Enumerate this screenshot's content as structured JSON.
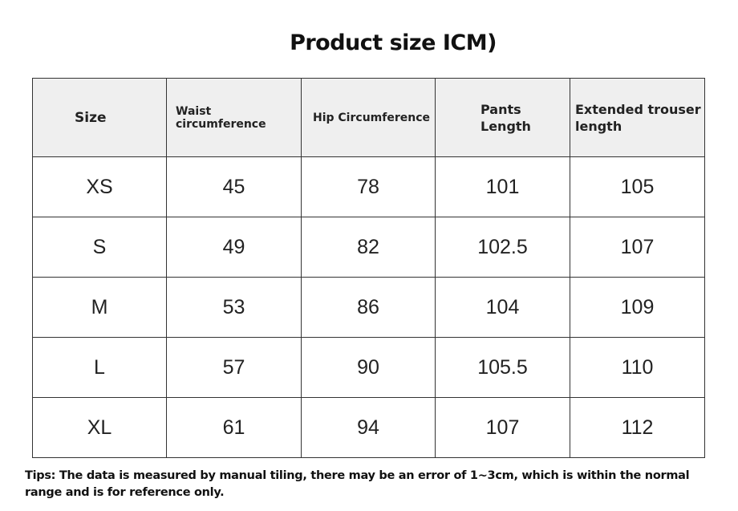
{
  "title": "Product size ICM)",
  "table": {
    "headers": [
      "Size",
      "Waist circumference",
      "Hip Circumference",
      "Pants Length",
      "Extended trouser length"
    ],
    "rows": [
      [
        "XS",
        "45",
        "78",
        "101",
        "105"
      ],
      [
        "S",
        "49",
        "82",
        "102.5",
        "107"
      ],
      [
        "M",
        "53",
        "86",
        "104",
        "109"
      ],
      [
        "L",
        "57",
        "90",
        "105.5",
        "110"
      ],
      [
        "XL",
        "61",
        "94",
        "107",
        "112"
      ]
    ]
  },
  "tips": "Tips: The data is measured by manual tiling, there may be an error of 1~3cm, which is within the normal range and is for reference only."
}
